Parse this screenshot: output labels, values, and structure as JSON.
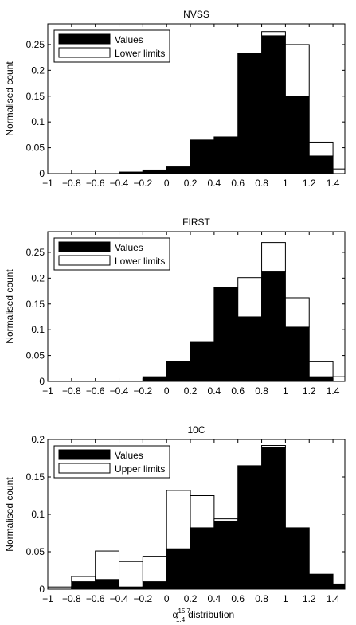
{
  "chart_data": [
    {
      "type": "bar",
      "stacked": true,
      "title": "NVSS",
      "xlabel": "",
      "ylabel": "Normalised count",
      "xlim": [
        -1,
        1.5
      ],
      "ylim": [
        0,
        0.29
      ],
      "x_ticks": [
        -1,
        -0.8,
        -0.6,
        -0.4,
        -0.2,
        0,
        0.2,
        0.4,
        0.6,
        0.8,
        1,
        1.2,
        1.4
      ],
      "x_tick_labels": [
        "−1",
        "−0.8",
        "−0.6",
        "−0.4",
        "−0.2",
        "0",
        "0.2",
        "0.4",
        "0.6",
        "0.8",
        "1",
        "1.2",
        "1.4"
      ],
      "y_ticks": [
        0,
        0.05,
        0.1,
        0.15,
        0.2,
        0.25
      ],
      "y_tick_labels": [
        "0",
        "0.05",
        "0.1",
        "0.15",
        "0.2",
        "0.25"
      ],
      "legend_position": "top-left",
      "categories": [
        -0.9,
        -0.7,
        -0.5,
        -0.3,
        -0.1,
        0.1,
        0.3,
        0.5,
        0.7,
        0.9,
        1.1,
        1.3,
        1.5
      ],
      "series": [
        {
          "name": "Values",
          "color": "#000000",
          "values": [
            0,
            0,
            0,
            0.003,
            0.007,
            0.013,
            0.065,
            0.071,
            0.233,
            0.267,
            0.15,
            0.034,
            0
          ]
        },
        {
          "name": "Lower limits",
          "color": "#ffffff",
          "values": [
            0,
            0,
            0,
            0,
            0,
            0,
            0,
            0,
            0,
            0.008,
            0.1,
            0.027,
            0.009
          ]
        }
      ]
    },
    {
      "type": "bar",
      "stacked": true,
      "title": "FIRST",
      "xlabel": "",
      "ylabel": "Normalised count",
      "xlim": [
        -1,
        1.5
      ],
      "ylim": [
        0,
        0.29
      ],
      "x_ticks": [
        -1,
        -0.8,
        -0.6,
        -0.4,
        -0.2,
        0,
        0.2,
        0.4,
        0.6,
        0.8,
        1,
        1.2,
        1.4
      ],
      "x_tick_labels": [
        "−1",
        "−0.8",
        "−0.6",
        "−0.4",
        "−0.2",
        "0",
        "0.2",
        "0.4",
        "0.6",
        "0.8",
        "1",
        "1.2",
        "1.4"
      ],
      "y_ticks": [
        0,
        0.05,
        0.1,
        0.15,
        0.2,
        0.25
      ],
      "y_tick_labels": [
        "0",
        "0.05",
        "0.1",
        "0.15",
        "0.2",
        "0.25"
      ],
      "legend_position": "top-left",
      "categories": [
        -0.9,
        -0.7,
        -0.5,
        -0.3,
        -0.1,
        0.1,
        0.3,
        0.5,
        0.7,
        0.9,
        1.1,
        1.3,
        1.5
      ],
      "series": [
        {
          "name": "Values",
          "color": "#000000",
          "values": [
            0,
            0,
            0,
            0,
            0.009,
            0.038,
            0.077,
            0.182,
            0.125,
            0.212,
            0.105,
            0.009,
            0
          ]
        },
        {
          "name": "Lower limits",
          "color": "#ffffff",
          "values": [
            0,
            0,
            0,
            0,
            0,
            0,
            0,
            0,
            0.076,
            0.057,
            0.057,
            0.029,
            0.009
          ]
        }
      ]
    },
    {
      "type": "bar",
      "stacked": true,
      "title": "10C",
      "xlabel": "α",
      "xlabel_superscript": "15.7",
      "xlabel_subscript": "1.4",
      "xlabel_suffix": "distribution",
      "ylabel": "Normalised count",
      "xlim": [
        -1,
        1.5
      ],
      "ylim": [
        0,
        0.2
      ],
      "x_ticks": [
        -1,
        -0.8,
        -0.6,
        -0.4,
        -0.2,
        0,
        0.2,
        0.4,
        0.6,
        0.8,
        1,
        1.2,
        1.4
      ],
      "x_tick_labels": [
        "−1",
        "−0.8",
        "−0.6",
        "−0.4",
        "−0.2",
        "0",
        "0.2",
        "0.4",
        "0.6",
        "0.8",
        "1",
        "1.2",
        "1.4"
      ],
      "y_ticks": [
        0,
        0.05,
        0.1,
        0.15,
        0.2
      ],
      "y_tick_labels": [
        "0",
        "0.05",
        "0.1",
        "0.15",
        "0.2"
      ],
      "legend_position": "top-left",
      "categories": [
        -0.9,
        -0.7,
        -0.5,
        -0.3,
        -0.1,
        0.1,
        0.3,
        0.5,
        0.7,
        0.9,
        1.1,
        1.3,
        1.5
      ],
      "series": [
        {
          "name": "Values",
          "color": "#000000",
          "values": [
            0,
            0.01,
            0.013,
            0.003,
            0.01,
            0.054,
            0.082,
            0.091,
            0.165,
            0.189,
            0.082,
            0.02,
            0.007
          ]
        },
        {
          "name": "Upper limits",
          "color": "#ffffff",
          "values": [
            0.003,
            0.007,
            0.038,
            0.034,
            0.034,
            0.078,
            0.043,
            0.003,
            0,
            0.003,
            0,
            0,
            0
          ]
        }
      ]
    }
  ]
}
